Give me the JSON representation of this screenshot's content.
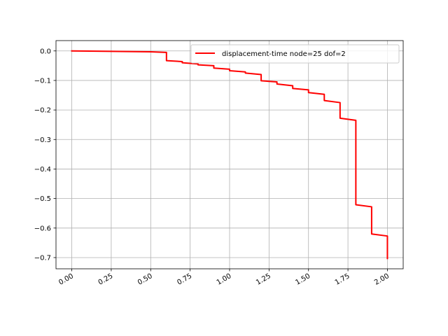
{
  "chart_data": {
    "type": "line",
    "title": "",
    "xlabel": "",
    "ylabel": "",
    "xlim": [
      -0.1,
      2.1
    ],
    "ylim": [
      -0.738,
      0.035
    ],
    "x_ticks": [
      0.0,
      0.25,
      0.5,
      0.75,
      1.0,
      1.25,
      1.5,
      1.75,
      2.0
    ],
    "x_tick_labels": [
      "0.00",
      "0.25",
      "0.50",
      "0.75",
      "1.00",
      "1.25",
      "1.50",
      "1.75",
      "2.00"
    ],
    "y_ticks": [
      0.0,
      -0.1,
      -0.2,
      -0.3,
      -0.4,
      -0.5,
      -0.6,
      -0.7
    ],
    "y_tick_labels": [
      "0.0",
      "−0.1",
      "−0.2",
      "−0.3",
      "−0.4",
      "−0.5",
      "−0.6",
      "−0.7"
    ],
    "grid": true,
    "legend_position": "top-right",
    "series": [
      {
        "name": "displacement-time node=25 dof=2",
        "color": "#ff0000",
        "x": [
          0.0,
          0.5,
          0.6,
          0.6,
          0.7,
          0.7,
          0.8,
          0.8,
          0.9,
          0.9,
          1.0,
          1.0,
          1.1,
          1.1,
          1.2,
          1.2,
          1.3,
          1.3,
          1.4,
          1.4,
          1.5,
          1.5,
          1.6,
          1.6,
          1.7,
          1.7,
          1.8,
          1.8,
          1.9,
          1.9,
          2.0,
          2.0
        ],
        "y": [
          0.0,
          -0.003,
          -0.005,
          -0.033,
          -0.036,
          -0.04,
          -0.044,
          -0.047,
          -0.05,
          -0.058,
          -0.062,
          -0.067,
          -0.071,
          -0.075,
          -0.08,
          -0.101,
          -0.105,
          -0.112,
          -0.118,
          -0.127,
          -0.132,
          -0.141,
          -0.147,
          -0.168,
          -0.175,
          -0.228,
          -0.235,
          -0.521,
          -0.528,
          -0.62,
          -0.627,
          -0.703
        ]
      }
    ]
  }
}
